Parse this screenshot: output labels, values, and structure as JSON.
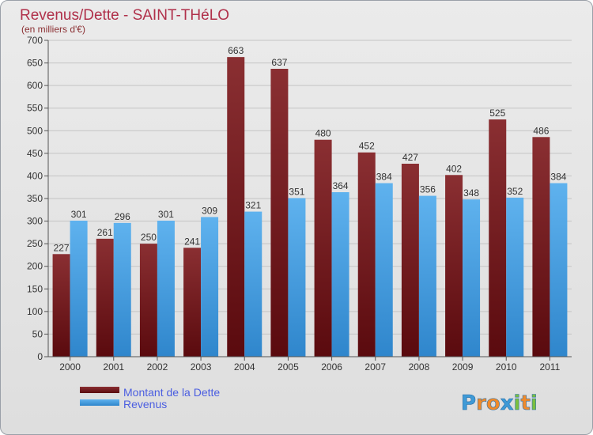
{
  "header": {
    "title": "Revenus/Dette - SAINT-THéLO",
    "subtitle": "(en milliers d'€)"
  },
  "legend": {
    "items": [
      {
        "label": "Montant de la Dette"
      },
      {
        "label": "Revenus"
      }
    ]
  },
  "logo": {
    "text": "Proxiti"
  },
  "colors": {
    "debt_top": "#8a2f32",
    "debt_bottom": "#5a0a0e",
    "rev_top": "#5fb2ee",
    "rev_bottom": "#2f86cc",
    "title": "#b0304a",
    "legend_text": "#4b5ee0"
  },
  "chart_data": {
    "type": "bar",
    "title": "Revenus/Dette - SAINT-THéLO",
    "subtitle": "(en milliers d'€)",
    "categories": [
      "2000",
      "2001",
      "2002",
      "2003",
      "2004",
      "2005",
      "2006",
      "2007",
      "2008",
      "2009",
      "2010",
      "2011"
    ],
    "series": [
      {
        "name": "Montant de la Dette",
        "values": [
          227,
          261,
          250,
          241,
          663,
          637,
          480,
          452,
          427,
          402,
          525,
          486
        ]
      },
      {
        "name": "Revenus",
        "values": [
          301,
          296,
          301,
          309,
          321,
          351,
          364,
          384,
          356,
          348,
          352,
          384
        ]
      }
    ],
    "ylim": [
      0,
      700
    ],
    "yticks": [
      0,
      50,
      100,
      150,
      200,
      250,
      300,
      350,
      400,
      450,
      500,
      550,
      600,
      650,
      700
    ],
    "grid": true,
    "legend_position": "bottom-left"
  }
}
